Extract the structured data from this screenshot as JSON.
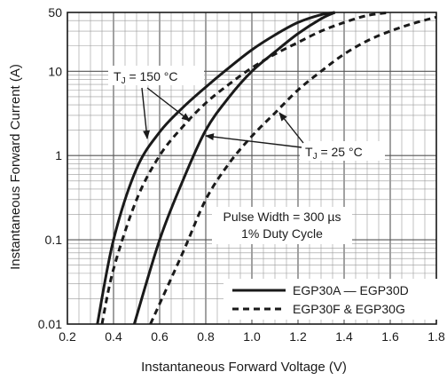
{
  "chart_data": {
    "type": "line",
    "title": "",
    "xlabel": "Instantaneous Forward Voltage (V)",
    "ylabel": "Instantaneous Forward Current (A)",
    "xlim": [
      0.2,
      1.8
    ],
    "ylim": [
      0.01,
      50
    ],
    "y_scale": "log",
    "grid": true,
    "x_ticks": [
      "0.2",
      "0.4",
      "0.6",
      "0.8",
      "1.0",
      "1.2",
      "1.4",
      "1.6",
      "1.8"
    ],
    "y_ticks": [
      "0.01",
      "0.1",
      "1",
      "10",
      "50"
    ],
    "legend_position": "bottom-right",
    "legend": [
      {
        "label": "EGP30A — EGP30D",
        "style": "solid"
      },
      {
        "label": "EGP30F & EGP30G",
        "style": "dashed"
      }
    ],
    "annotations": {
      "tj_high": {
        "prefix": "T",
        "subscript": "J",
        "text": " = 150 °C"
      },
      "tj_low": {
        "prefix": "T",
        "subscript": "J",
        "text": " = 25 °C"
      },
      "pulse_line1": "Pulse Width = 300 µs",
      "pulse_line2": "1% Duty Cycle"
    },
    "series": [
      {
        "style": "solid",
        "condition": "TJ = 150 °C",
        "x": [
          0.33,
          0.4,
          0.5,
          0.6,
          0.7,
          0.8,
          0.9,
          1.0,
          1.1,
          1.2,
          1.3,
          1.36
        ],
        "y": [
          0.01,
          0.1,
          0.7,
          1.9,
          3.7,
          6.5,
          11,
          18,
          27,
          38,
          47,
          50
        ]
      },
      {
        "style": "solid",
        "condition": "TJ = 25 °C",
        "x": [
          0.49,
          0.6,
          0.7,
          0.8,
          0.9,
          1.0,
          1.1,
          1.2,
          1.3,
          1.36
        ],
        "y": [
          0.01,
          0.1,
          0.5,
          2.0,
          4.9,
          10,
          17,
          28,
          42,
          50
        ]
      },
      {
        "style": "dashed",
        "condition": "TJ = 150 °C",
        "x": [
          0.35,
          0.4,
          0.5,
          0.6,
          0.7,
          0.8,
          0.9,
          1.0,
          1.1,
          1.2,
          1.3,
          1.4,
          1.5,
          1.6
        ],
        "y": [
          0.01,
          0.045,
          0.3,
          1.0,
          2.2,
          4.2,
          7,
          11,
          16,
          22,
          30,
          38,
          46,
          50
        ]
      },
      {
        "style": "dashed",
        "condition": "TJ = 25 °C",
        "x": [
          0.56,
          0.7,
          0.8,
          0.9,
          1.0,
          1.1,
          1.2,
          1.3,
          1.4,
          1.5,
          1.6,
          1.7,
          1.8
        ],
        "y": [
          0.01,
          0.07,
          0.3,
          0.8,
          1.7,
          3.2,
          6,
          10,
          16,
          23,
          30,
          37,
          44
        ]
      }
    ]
  }
}
